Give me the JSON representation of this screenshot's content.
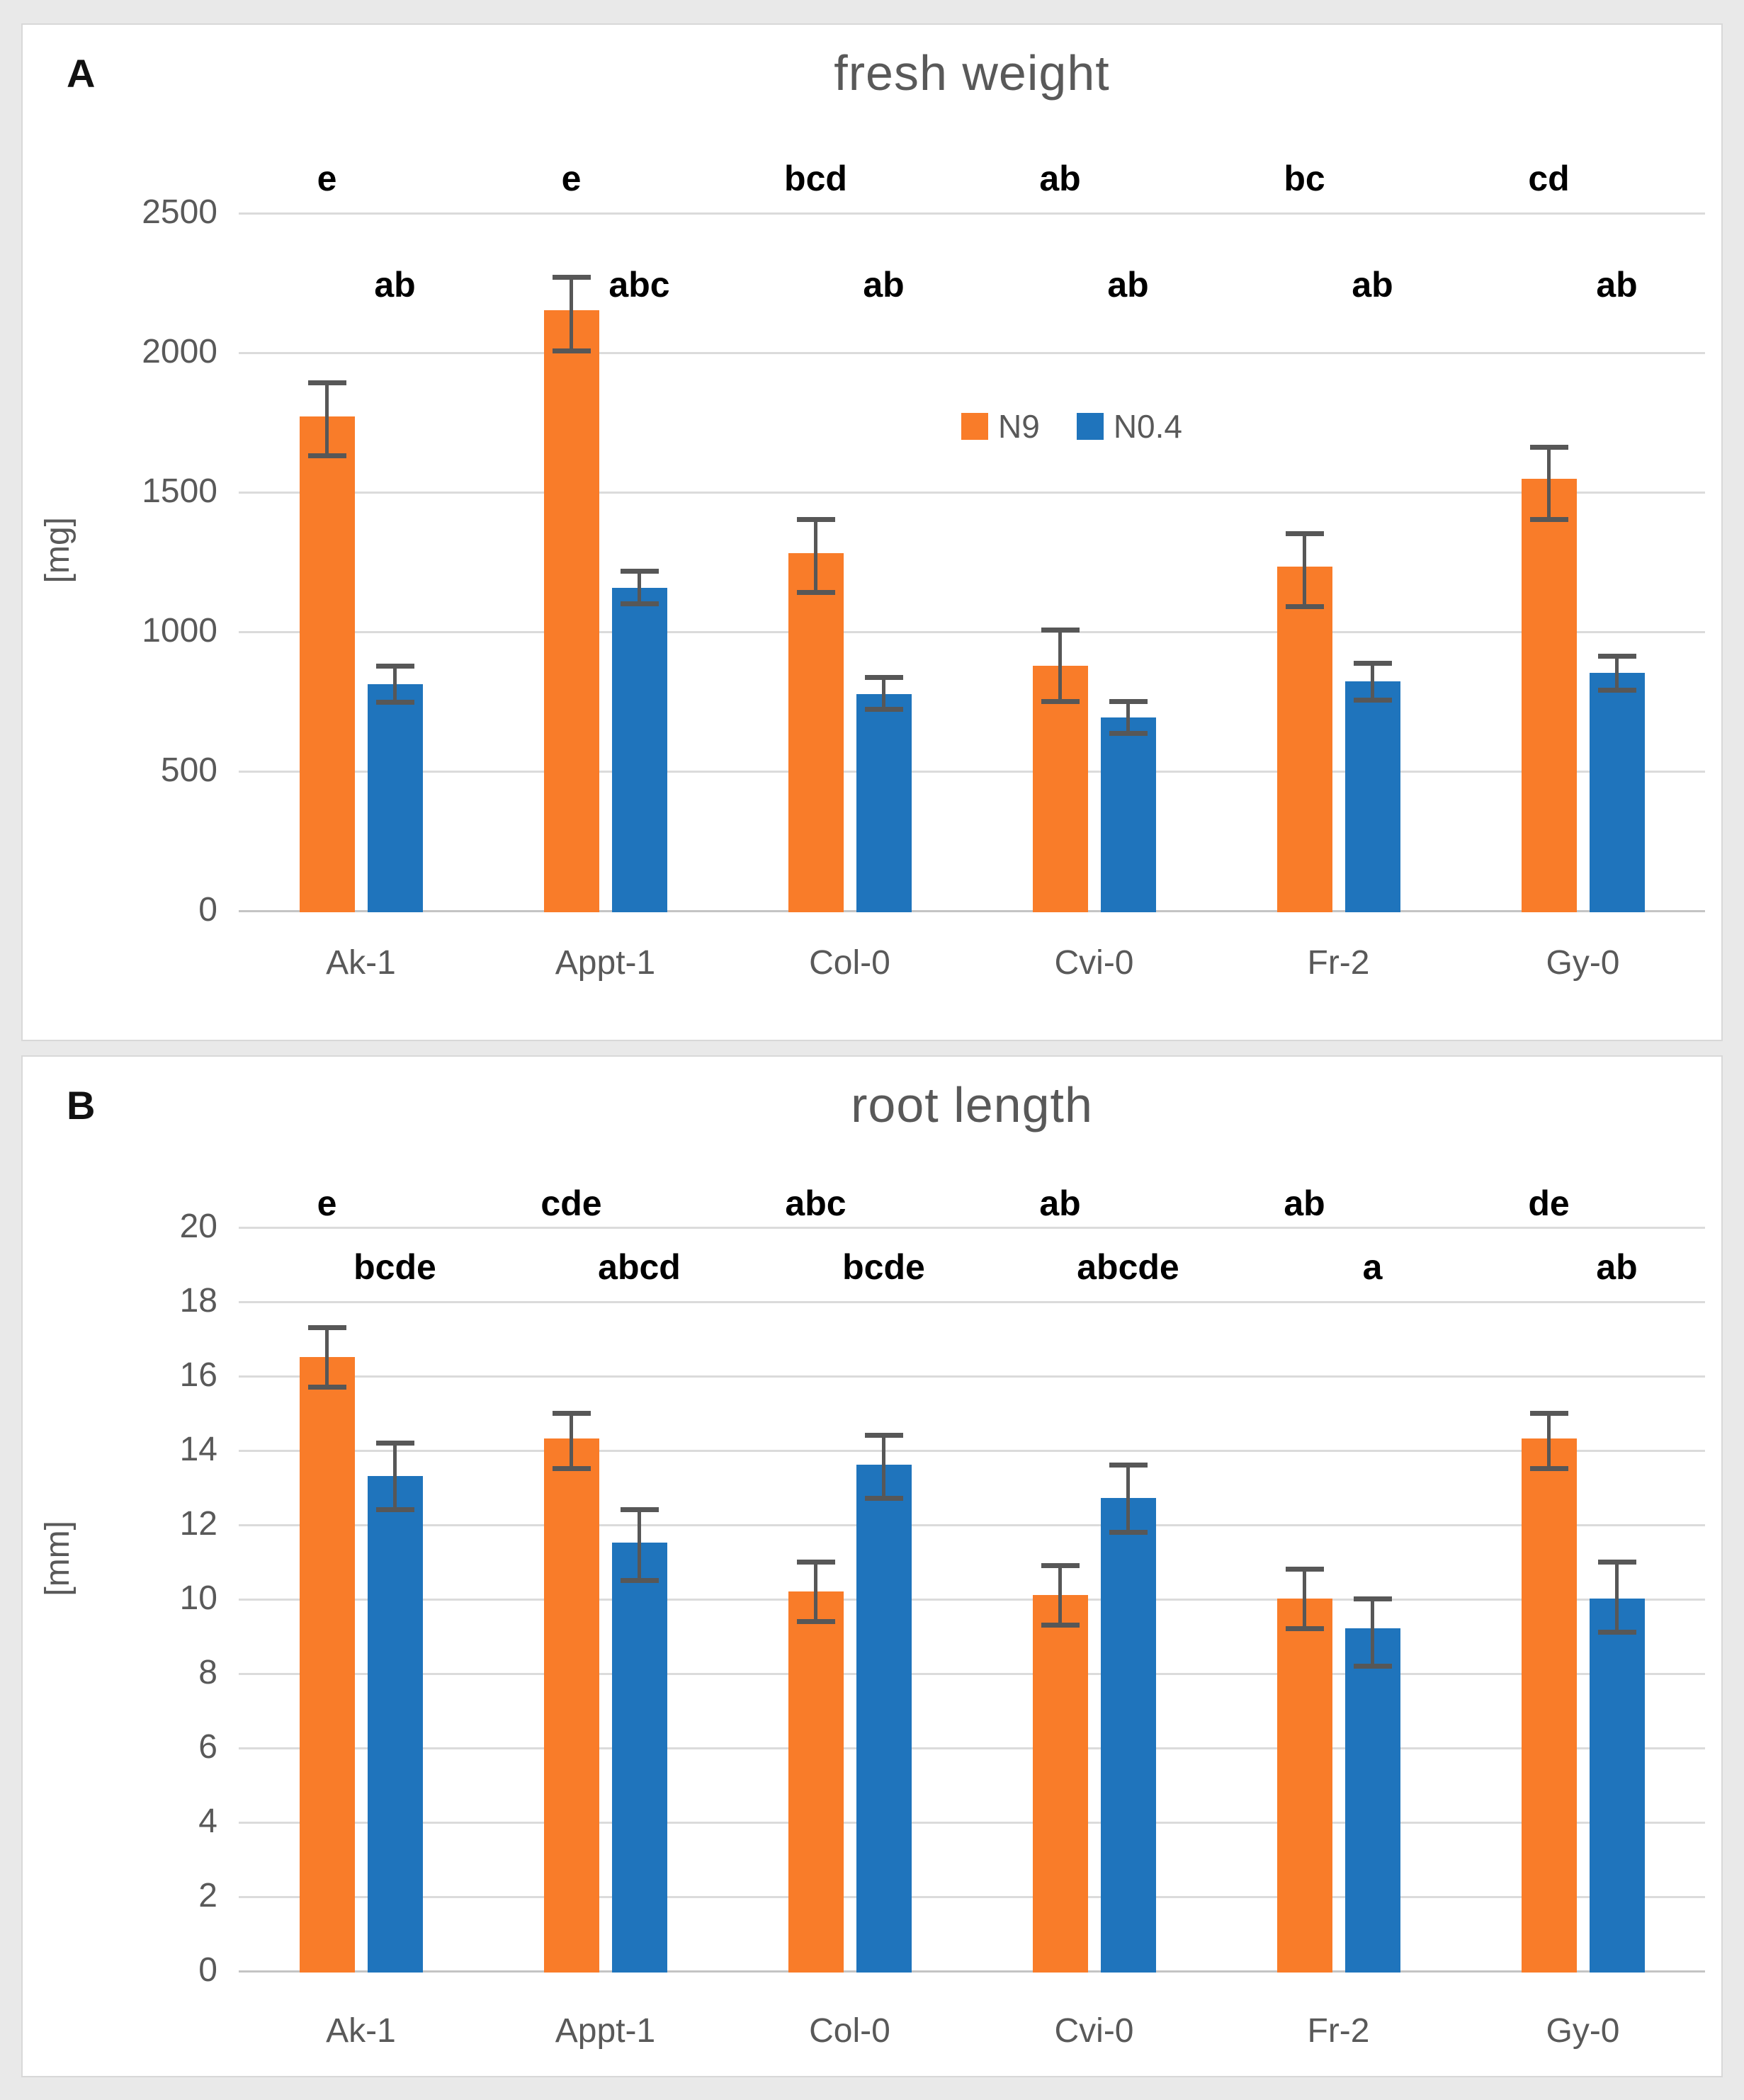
{
  "figure": {
    "background": "#E9E9E9",
    "panel_background": "#FFFFFF",
    "panel_border": "#D8D8D8"
  },
  "colors": {
    "n9_orange": "#F97C29",
    "n04_blue": "#1F74BC",
    "gridline": "#DBDBDB",
    "axis_line": "#C4C4C4",
    "error_bar": "#575757",
    "text_gray": "#595959",
    "letters_black": "#000000"
  },
  "chart_data": [
    {
      "type": "bar",
      "panel_label": "A",
      "title": "fresh weight",
      "ylabel": "[mg]",
      "ylim": [
        0,
        2500
      ],
      "ytick_step": 500,
      "grid": true,
      "legend": {
        "visible": true,
        "position": "upper-center",
        "items": [
          "N9",
          "N0.4"
        ]
      },
      "categories": [
        "Ak-1",
        "Appt-1",
        "Col-0",
        "Cvi-0",
        "Fr-2",
        "Gy-0"
      ],
      "series": [
        {
          "name": "N9",
          "color": "#F97C29",
          "values": [
            1770,
            2150,
            1280,
            875,
            1230,
            1545
          ],
          "err_lo": [
            1630,
            2005,
            1140,
            750,
            1090,
            1400
          ],
          "err_hi": [
            1890,
            2270,
            1400,
            1005,
            1350,
            1660
          ],
          "letters": [
            "e",
            "e",
            "bcd",
            "ab",
            "bc",
            "cd"
          ]
        },
        {
          "name": "N0.4",
          "color": "#1F74BC",
          "values": [
            810,
            1155,
            775,
            690,
            820,
            850
          ],
          "err_lo": [
            745,
            1100,
            720,
            635,
            755,
            790
          ],
          "err_hi": [
            875,
            1215,
            835,
            750,
            885,
            910
          ],
          "letters": [
            "ab",
            "abc",
            "ab",
            "ab",
            "ab",
            "ab"
          ]
        }
      ]
    },
    {
      "type": "bar",
      "panel_label": "B",
      "title": "root length",
      "ylabel": "[mm]",
      "ylim": [
        0,
        20
      ],
      "ytick_step": 2,
      "grid": true,
      "legend": {
        "visible": false,
        "position": "",
        "items": []
      },
      "categories": [
        "Ak-1",
        "Appt-1",
        "Col-0",
        "Cvi-0",
        "Fr-2",
        "Gy-0"
      ],
      "series": [
        {
          "name": "N9",
          "color": "#F97C29",
          "values": [
            16.5,
            14.3,
            10.2,
            10.1,
            10.0,
            14.3
          ],
          "err_lo": [
            15.7,
            13.5,
            9.4,
            9.3,
            9.2,
            13.5
          ],
          "err_hi": [
            17.3,
            15.0,
            11.0,
            10.9,
            10.8,
            15.0
          ],
          "letters": [
            "e",
            "cde",
            "abc",
            "ab",
            "ab",
            "de"
          ]
        },
        {
          "name": "N0.4",
          "color": "#1F74BC",
          "values": [
            13.3,
            11.5,
            13.6,
            12.7,
            9.2,
            10.0
          ],
          "err_lo": [
            12.4,
            10.5,
            12.7,
            11.8,
            8.2,
            9.1
          ],
          "err_hi": [
            14.2,
            12.4,
            14.4,
            13.6,
            10.0,
            11.0
          ],
          "letters": [
            "bcde",
            "abcd",
            "bcde",
            "abcde",
            "a",
            "ab"
          ]
        }
      ]
    }
  ]
}
